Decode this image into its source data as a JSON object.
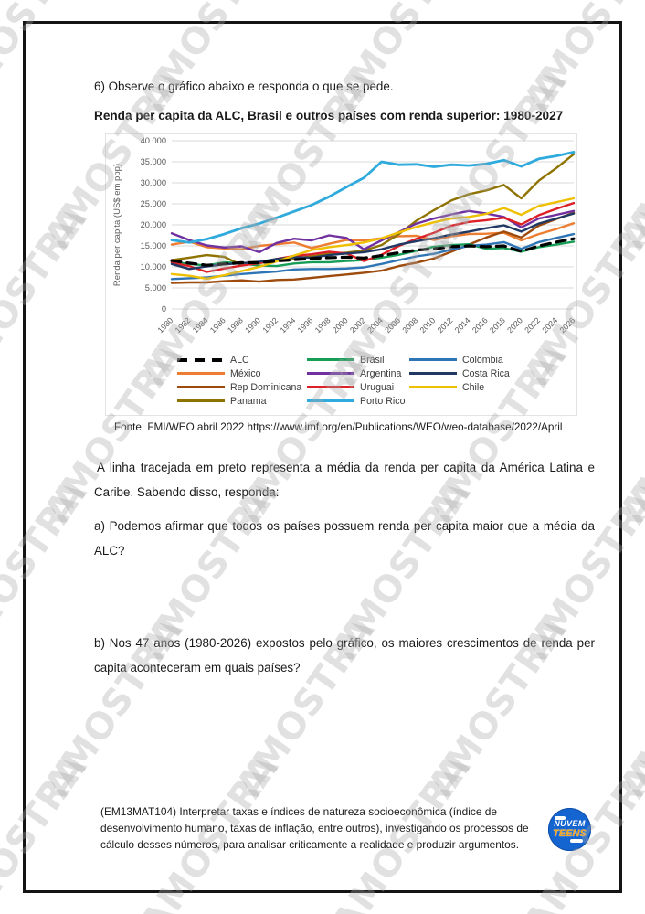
{
  "page": {
    "question_intro": "6) Observe o gráfico abaixo e responda o que se pede.",
    "chart_title": "Renda per capita da ALC, Brasil e outros países com renda superior: 1980-2027",
    "fonte": "Fonte: FMI/WEO abril 2022 https://www.imf.org/en/Publications/WEO/weo-database/2022/April",
    "paragraph": "A linha tracejada em preto representa a média da renda per capita da América Latina e Caribe. Sabendo disso, responda:",
    "question_a": "a) Podemos afirmar que todos os países possuem renda per capita maior que a média da ALC?",
    "question_b": "b) Nos 47 anos (1980-2026) expostos pelo gráfico, os maiores crescimentos de renda per capita aconteceram em quais países?",
    "footer_skill": "(EM13MAT104) Interpretar taxas e índices de natureza socioeconômica (índice de desenvolvimento humano, taxas de inflação, entre outros), investigando os processos de cálculo desses números, para analisar criticamente a realidade e produzir argumentos.",
    "watermark_text": "AMOSTRA",
    "logo": {
      "line1": "NUVEM",
      "line2": "TEENS"
    }
  },
  "chart_data": {
    "type": "line",
    "title": "Renda per capita da ALC, Brasil e outros países com renda superior: 1980-2027",
    "xlabel": "",
    "ylabel": "Renda per capita (US$ em ppp)",
    "ylim": [
      0,
      40000
    ],
    "grid": true,
    "legend_position": "bottom",
    "y_tick_labels": [
      "40.000",
      "35.000",
      "30.000",
      "25.000",
      "20.000",
      "15.000",
      "10.000",
      "5.000",
      "0"
    ],
    "x_tick_labels": [
      "1980",
      "1982",
      "1984",
      "1986",
      "1988",
      "1990",
      "1992",
      "1994",
      "1996",
      "1998",
      "2000",
      "2002",
      "2004",
      "2006",
      "2008",
      "2010",
      "2012",
      "2014",
      "2016",
      "2018",
      "2020",
      "2022",
      "2024",
      "2026"
    ],
    "series": [
      {
        "name": "ALC",
        "color": "#000000",
        "dash": true,
        "values": [
          11500,
          10900,
          10400,
          10700,
          11000,
          11000,
          11400,
          11700,
          12000,
          12200,
          12300,
          12100,
          12700,
          13400,
          14000,
          14300,
          14800,
          15000,
          14800,
          15000,
          13700,
          15000,
          15900,
          16700
        ]
      },
      {
        "name": "México",
        "color": "#ED7D31",
        "dash": false,
        "values": [
          15300,
          16000,
          14700,
          14400,
          14200,
          15000,
          15400,
          15800,
          14500,
          15500,
          16400,
          16300,
          16800,
          17300,
          17400,
          16400,
          17300,
          17800,
          17900,
          18100,
          16300,
          17800,
          19000,
          20400
        ]
      },
      {
        "name": "Rep Dominicana",
        "color": "#9E4B0E",
        "dash": false,
        "values": [
          6200,
          6300,
          6300,
          6600,
          6800,
          6500,
          6900,
          7000,
          7400,
          7800,
          8200,
          8600,
          9100,
          10200,
          11000,
          12000,
          13600,
          15300,
          17000,
          18400,
          17000,
          19800,
          21400,
          22900
        ]
      },
      {
        "name": "Panama",
        "color": "#8F7300",
        "dash": false,
        "values": [
          11600,
          12200,
          12800,
          12400,
          10400,
          10900,
          11500,
          12000,
          12500,
          13100,
          13400,
          13900,
          15200,
          17800,
          21000,
          23500,
          25800,
          27300,
          28200,
          29500,
          26300,
          30500,
          33500,
          36800
        ]
      },
      {
        "name": "Brasil",
        "color": "#169E56",
        "dash": false,
        "values": [
          11200,
          10700,
          10300,
          11100,
          10800,
          10300,
          10200,
          10800,
          11100,
          11100,
          11400,
          11600,
          12200,
          12900,
          13800,
          14800,
          15200,
          15400,
          14300,
          14500,
          13600,
          14700,
          15300,
          16000
        ]
      },
      {
        "name": "Argentina",
        "color": "#7030A0",
        "dash": false,
        "values": [
          18000,
          16400,
          15100,
          14600,
          14900,
          13500,
          15700,
          16700,
          16300,
          17500,
          16900,
          14200,
          16300,
          18300,
          20300,
          21500,
          22500,
          23300,
          22700,
          21900,
          19400,
          21500,
          22400,
          23300
        ]
      },
      {
        "name": "Uruguai",
        "color": "#DD1F26",
        "dash": false,
        "values": [
          11000,
          10200,
          8800,
          9600,
          10300,
          10900,
          11900,
          12600,
          13000,
          13600,
          13200,
          11400,
          12900,
          15000,
          16700,
          18100,
          19800,
          20700,
          21100,
          21700,
          20100,
          22300,
          23800,
          25200
        ]
      },
      {
        "name": "Porto Rico",
        "color": "#2EAADC",
        "dash": false,
        "values": [
          16400,
          15800,
          16600,
          17800,
          19200,
          20300,
          21700,
          23200,
          24700,
          26700,
          29000,
          31200,
          35000,
          34300,
          34400,
          33800,
          34300,
          34100,
          34500,
          35400,
          33900,
          35700,
          36400,
          37300
        ]
      },
      {
        "name": "Colômbia",
        "color": "#2E75B6",
        "dash": false,
        "values": [
          7100,
          7300,
          7500,
          7900,
          8300,
          8600,
          8900,
          9400,
          9500,
          9500,
          9600,
          9900,
          10700,
          11600,
          12500,
          13100,
          14100,
          15000,
          15300,
          15900,
          14300,
          15900,
          16900,
          17800
        ]
      },
      {
        "name": "Costa Rica",
        "color": "#1F3864",
        "dash": false,
        "values": [
          10700,
          9500,
          10100,
          10600,
          10900,
          11200,
          11900,
          12300,
          12200,
          12800,
          13200,
          13500,
          14200,
          15300,
          16100,
          16800,
          17700,
          18400,
          19200,
          19900,
          18400,
          20300,
          21500,
          22700
        ]
      },
      {
        "name": "Chile",
        "color": "#EEC000",
        "dash": false,
        "values": [
          8300,
          7900,
          7200,
          8000,
          9000,
          10000,
          11300,
          12700,
          14000,
          14700,
          15200,
          15800,
          16800,
          18200,
          19500,
          20600,
          21500,
          21900,
          22600,
          24000,
          22400,
          24500,
          25400,
          26300
        ]
      }
    ]
  }
}
